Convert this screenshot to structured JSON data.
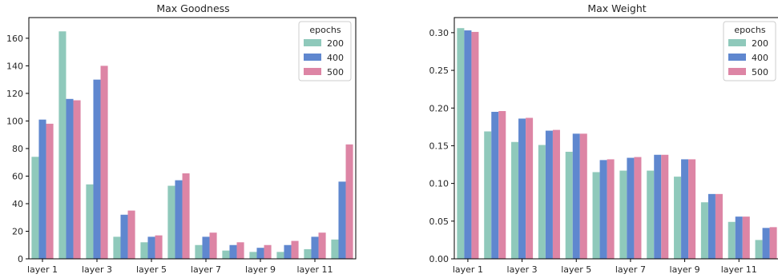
{
  "colors": {
    "200": "#8fc9bb",
    "400": "#5f87cf",
    "500": "#dd85a5"
  },
  "chart_data": [
    {
      "type": "bar",
      "title": "Max Goodness",
      "legend_title": "epochs",
      "legend_position": "top-right",
      "grid": false,
      "categories": [
        "layer 1",
        "layer 2",
        "layer 3",
        "layer 4",
        "layer 5",
        "layer 6",
        "layer 7",
        "layer 8",
        "layer 9",
        "layer 10",
        "layer 11",
        "layer 12"
      ],
      "tick_labels": [
        "layer 1",
        "layer 3",
        "layer 5",
        "layer 7",
        "layer 9",
        "layer 11"
      ],
      "ylim": [
        0,
        175
      ],
      "yticks": [
        0,
        20,
        40,
        60,
        80,
        100,
        120,
        140,
        160
      ],
      "ytick_labels": [
        "0",
        "20",
        "40",
        "60",
        "80",
        "100",
        "120",
        "140",
        "160"
      ],
      "series": [
        {
          "name": "200",
          "values": [
            74,
            165,
            54,
            16,
            12,
            53,
            10,
            6,
            5,
            5,
            7,
            14
          ]
        },
        {
          "name": "400",
          "values": [
            101,
            116,
            130,
            32,
            16,
            57,
            16,
            10,
            8,
            10,
            16,
            56
          ]
        },
        {
          "name": "500",
          "values": [
            98,
            115,
            140,
            35,
            17,
            62,
            19,
            12,
            10,
            13,
            19,
            83
          ]
        }
      ]
    },
    {
      "type": "bar",
      "title": "Max Weight",
      "legend_title": "epochs",
      "legend_position": "top-right",
      "grid": false,
      "categories": [
        "layer 1",
        "layer 2",
        "layer 3",
        "layer 4",
        "layer 5",
        "layer 6",
        "layer 7",
        "layer 8",
        "layer 9",
        "layer 10",
        "layer 11",
        "layer 12"
      ],
      "tick_labels": [
        "layer 1",
        "layer 3",
        "layer 5",
        "layer 7",
        "layer 9",
        "layer 11"
      ],
      "ylim": [
        0,
        0.32
      ],
      "yticks": [
        0,
        0.05,
        0.1,
        0.15,
        0.2,
        0.25,
        0.3
      ],
      "ytick_labels": [
        "0.00",
        "0.05",
        "0.10",
        "0.15",
        "0.20",
        "0.25",
        "0.30"
      ],
      "series": [
        {
          "name": "200",
          "values": [
            0.306,
            0.169,
            0.155,
            0.151,
            0.142,
            0.115,
            0.117,
            0.117,
            0.109,
            0.075,
            0.049,
            0.025
          ]
        },
        {
          "name": "400",
          "values": [
            0.303,
            0.195,
            0.186,
            0.17,
            0.166,
            0.131,
            0.134,
            0.138,
            0.132,
            0.086,
            0.056,
            0.041
          ]
        },
        {
          "name": "500",
          "values": [
            0.301,
            0.196,
            0.187,
            0.171,
            0.166,
            0.132,
            0.135,
            0.138,
            0.132,
            0.086,
            0.056,
            0.042
          ]
        }
      ]
    }
  ]
}
